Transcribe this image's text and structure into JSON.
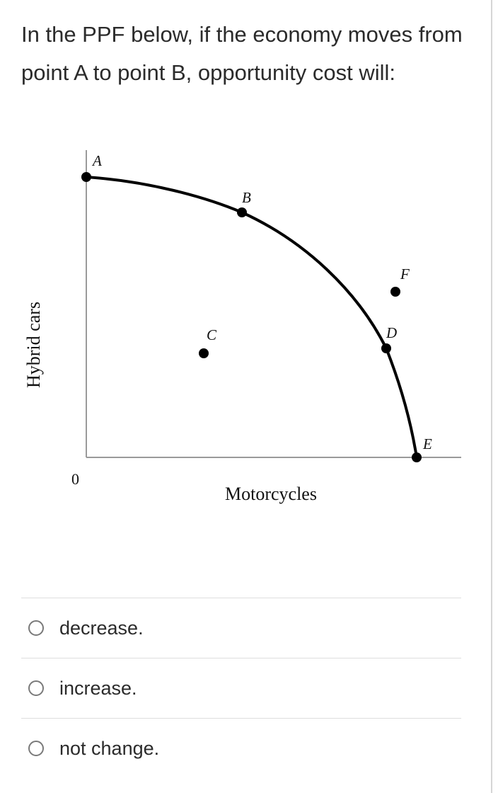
{
  "question": {
    "text": "In the PPF below, if the economy moves from point A to point B, opportunity cost will:"
  },
  "figure": {
    "y_axis_label": "Hybrid cars",
    "x_axis_label": "Motorcycles",
    "origin_label": "0",
    "points": [
      {
        "label": "A",
        "on_curve": true
      },
      {
        "label": "B",
        "on_curve": true
      },
      {
        "label": "C",
        "on_curve": false
      },
      {
        "label": "D",
        "on_curve": true
      },
      {
        "label": "E",
        "on_curve": true
      },
      {
        "label": "F",
        "on_curve": false
      }
    ]
  },
  "options": [
    {
      "label": "decrease."
    },
    {
      "label": "increase."
    },
    {
      "label": "not change."
    }
  ]
}
